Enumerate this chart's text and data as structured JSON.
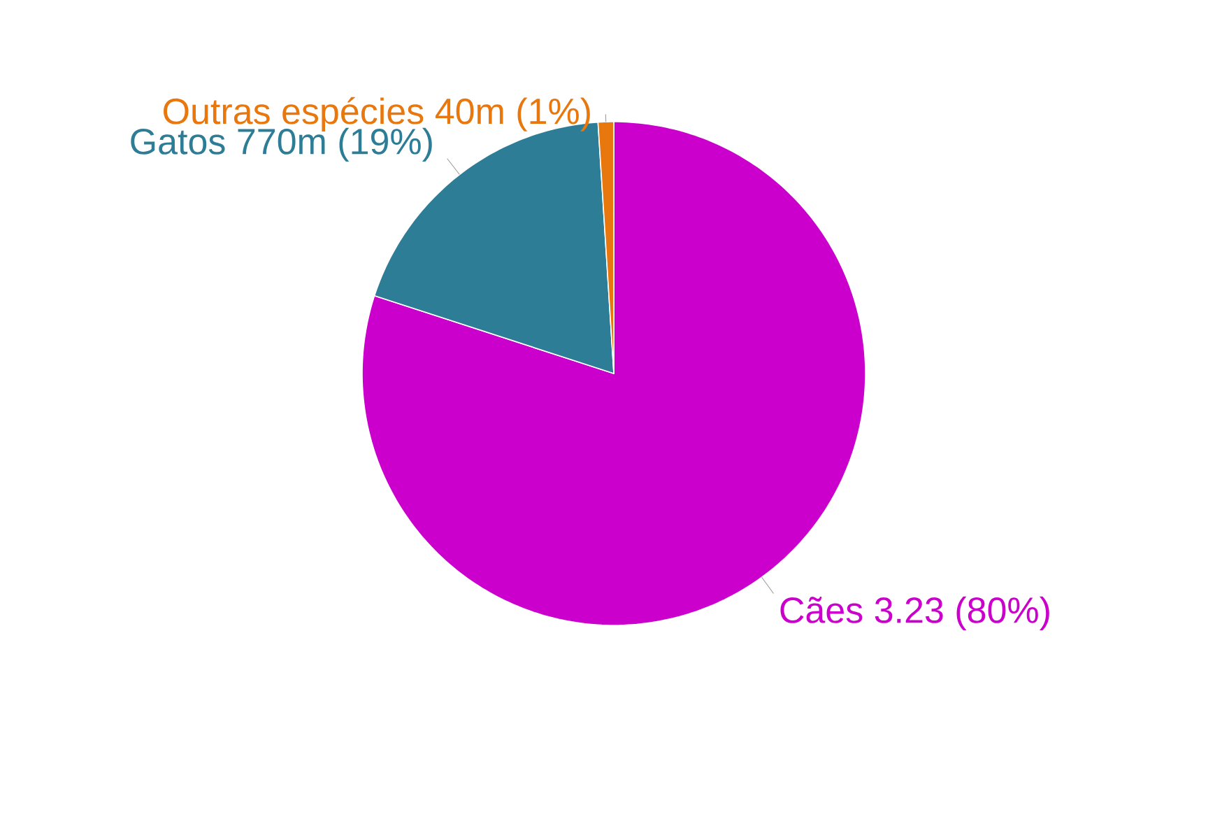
{
  "chart_data": {
    "type": "pie",
    "categories": [
      "Cães",
      "Gatos",
      "Outras espécies"
    ],
    "values": [
      80,
      19,
      1
    ],
    "value_labels": [
      "3.23 (80%)",
      "770m (19%)",
      "40m (1%)"
    ],
    "colors": [
      "#cc00cc",
      "#2e7d96",
      "#e8770e"
    ]
  }
}
